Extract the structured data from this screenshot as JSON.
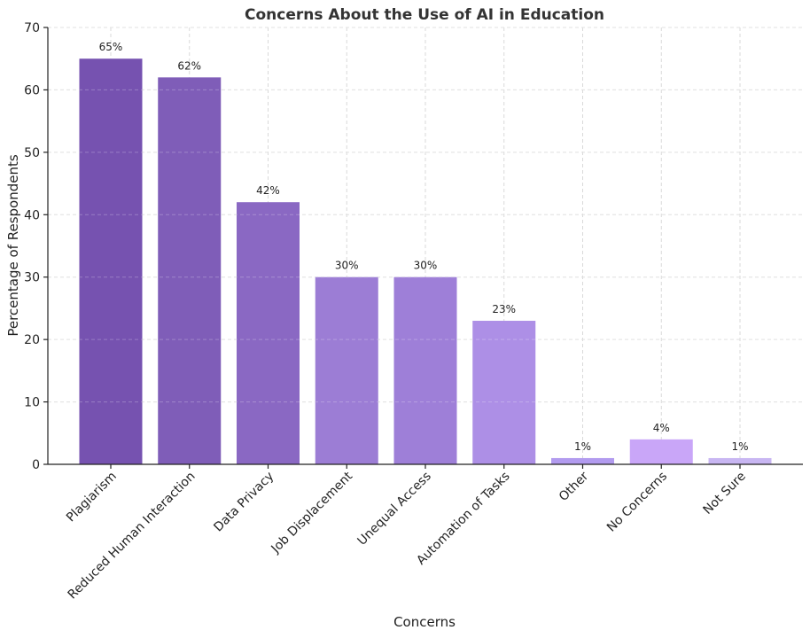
{
  "chart_data": {
    "type": "bar",
    "title": "Concerns About the Use of AI in Education",
    "xlabel": "Concerns",
    "ylabel": "Percentage of Respondents",
    "categories": [
      "Plagiarism",
      "Reduced Human Interaction",
      "Data Privacy",
      "Job Displacement",
      "Unequal Access",
      "Automation of Tasks",
      "Other",
      "No Concerns",
      "Not Sure"
    ],
    "values": [
      65,
      62,
      42,
      30,
      30,
      23,
      1,
      4,
      1
    ],
    "data_labels": [
      "65%",
      "62%",
      "42%",
      "30%",
      "30%",
      "23%",
      "1%",
      "4%",
      "1%"
    ],
    "bar_colors": [
      "#7652b0",
      "#7f5db8",
      "#8a68c3",
      "#9c7dd5",
      "#9e7fd8",
      "#ad8fe6",
      "#b29bef",
      "#c9a6f8",
      "#c8b6f2"
    ],
    "ylim": [
      0,
      70
    ],
    "yticks": [
      0,
      10,
      20,
      30,
      40,
      50,
      60,
      70
    ],
    "grid": true
  }
}
